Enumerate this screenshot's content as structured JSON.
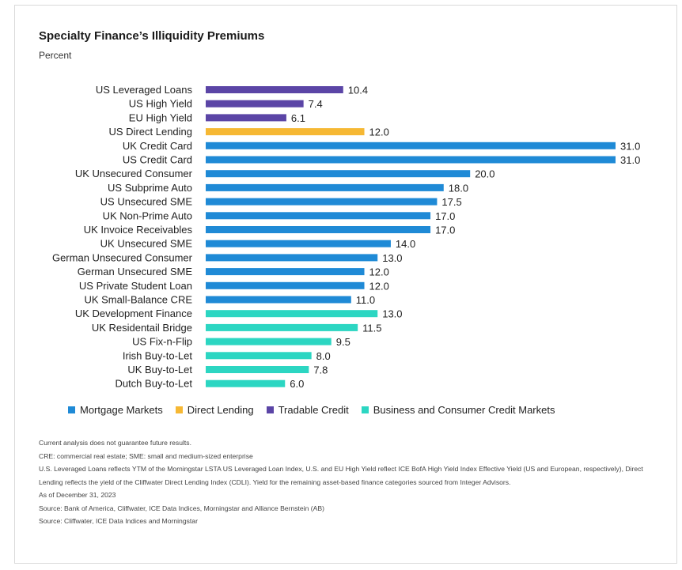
{
  "title": "Specialty Finance’s Illiquidity Premiums",
  "subtitle": "Percent",
  "colors": {
    "mortgage": "#1f8ad6",
    "direct": "#f6b834",
    "tradable": "#5b45a6",
    "business": "#2cd6c2"
  },
  "legend": [
    {
      "label": "Mortgage Markets",
      "color": "#1f8ad6"
    },
    {
      "label": "Direct Lending",
      "color": "#f6b834"
    },
    {
      "label": "Tradable Credit",
      "color": "#5b45a6"
    },
    {
      "label": "Business and Consumer Credit Markets",
      "color": "#2cd6c2"
    }
  ],
  "chart_data": {
    "type": "bar",
    "orientation": "horizontal",
    "title": "Specialty Finance’s Illiquidity Premiums",
    "ylabel": "Percent",
    "xlim": [
      0,
      31
    ],
    "grid": false,
    "legend_position": "bottom",
    "categories": [
      "US Leveraged Loans",
      "US High Yield",
      "EU High Yield",
      "US Direct Lending",
      "UK Credit Card",
      "US Credit Card",
      "UK Unsecured Consumer",
      "US Subprime Auto",
      "US Unsecured SME",
      "UK Non-Prime Auto",
      "UK Invoice Receivables",
      "UK Unsecured SME",
      "German Unsecured Consumer",
      "German Unsecured SME",
      "US Private Student Loan",
      "UK Small-Balance CRE",
      "UK Development Finance",
      "UK Residentail Bridge",
      "US Fix-n-Flip",
      "Irish Buy-to-Let",
      "UK Buy-to-Let",
      "Dutch Buy-to-Let"
    ],
    "values": [
      10.4,
      7.4,
      6.1,
      12.0,
      31.0,
      31.0,
      20.0,
      18.0,
      17.5,
      17.0,
      17.0,
      14.0,
      13.0,
      12.0,
      12.0,
      11.0,
      13.0,
      11.5,
      9.5,
      8.0,
      7.8,
      6.0
    ],
    "value_labels": [
      "10.4",
      "7.4",
      "6.1",
      "12.0",
      "31.0",
      "31.0",
      "20.0",
      "18.0",
      "17.5",
      "17.0",
      "17.0",
      "14.0",
      "13.0",
      "12.0",
      "12.0",
      "11.0",
      "13.0",
      "11.5",
      "9.5",
      "8.0",
      "7.8",
      "6.0"
    ],
    "groups": [
      "Tradable Credit",
      "Tradable Credit",
      "Tradable Credit",
      "Direct Lending",
      "Mortgage Markets",
      "Mortgage Markets",
      "Mortgage Markets",
      "Mortgage Markets",
      "Mortgage Markets",
      "Mortgage Markets",
      "Mortgage Markets",
      "Mortgage Markets",
      "Mortgage Markets",
      "Mortgage Markets",
      "Mortgage Markets",
      "Mortgage Markets",
      "Business and Consumer Credit Markets",
      "Business and Consumer Credit Markets",
      "Business and Consumer Credit Markets",
      "Business and Consumer Credit Markets",
      "Business and Consumer Credit Markets",
      "Business and Consumer Credit Markets"
    ]
  },
  "notes": [
    "Current analysis does not guarantee future results.",
    "CRE: commercial real estate; SME: small and medium-sized enterprise",
    "U.S. Leveraged Loans reflects YTM of the Morningstar LSTA US Leveraged Loan Index, U.S. and EU High Yield reflect ICE BofA High Yield Index Effective Yield (US and European, respectively), Direct",
    "Lending reflects the yield of the Cliffwater Direct Lending Index (CDLI). Yield for the remaining asset-based finance categories sourced from Integer Advisors.",
    "As of December 31, 2023",
    "Source: Bank of America, Cliffwater, ICE Data Indices, Morningstar and Alliance Bernstein (AB)",
    "Source: Cliffwater, ICE Data Indices and Morningstar"
  ]
}
